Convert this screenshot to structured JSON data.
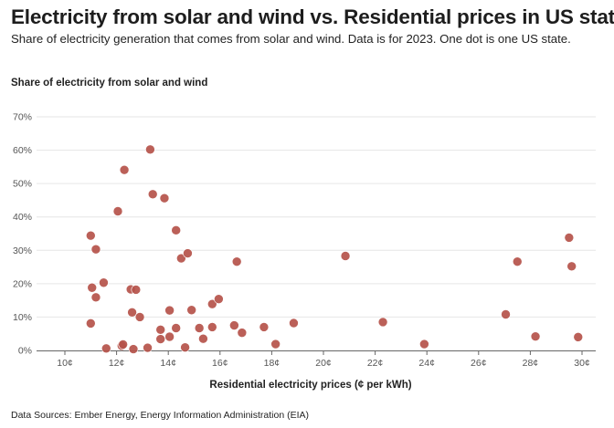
{
  "title": "Electricity from solar and wind vs. Residential prices in US states",
  "subtitle": "Share of electricity generation that comes from solar and wind. Data is for 2023. One dot is one US state.",
  "source": "Data Sources: Ember Energy, Energy Information Administration (EIA)",
  "colors": {
    "dot": "#b5524a",
    "grid": "#e6e6e6",
    "axis": "#666666"
  },
  "chart_data": {
    "type": "scatter",
    "title": "Electricity from solar and wind vs. Residential prices in US states",
    "xlabel": "Residential electricity prices (¢ per kWh)",
    "ylabel": "Share of electricity from solar and wind",
    "xlim": [
      9,
      30
    ],
    "ylim": [
      0,
      70
    ],
    "xticks": [
      10,
      12,
      14,
      16,
      18,
      20,
      22,
      24,
      26,
      28,
      30
    ],
    "xtick_labels": [
      "10¢",
      "12¢",
      "14¢",
      "16¢",
      "18¢",
      "20¢",
      "22¢",
      "24¢",
      "26¢",
      "28¢",
      "30¢"
    ],
    "yticks": [
      0,
      10,
      20,
      30,
      40,
      50,
      60,
      70
    ],
    "ytick_labels": [
      "0%",
      "10%",
      "20%",
      "30%",
      "40%",
      "50%",
      "60%",
      "70%"
    ],
    "grid": "horizontal",
    "points": [
      {
        "x": 11.0,
        "y": 34.4
      },
      {
        "x": 11.0,
        "y": 8.1
      },
      {
        "x": 11.05,
        "y": 18.8
      },
      {
        "x": 11.2,
        "y": 30.3
      },
      {
        "x": 11.2,
        "y": 15.9
      },
      {
        "x": 11.5,
        "y": 20.3
      },
      {
        "x": 11.6,
        "y": 0.6
      },
      {
        "x": 12.05,
        "y": 41.7
      },
      {
        "x": 12.2,
        "y": 1.4
      },
      {
        "x": 12.25,
        "y": 1.8
      },
      {
        "x": 12.3,
        "y": 54.1
      },
      {
        "x": 12.55,
        "y": 18.3
      },
      {
        "x": 12.6,
        "y": 11.4
      },
      {
        "x": 12.65,
        "y": 0.4
      },
      {
        "x": 12.75,
        "y": 18.2
      },
      {
        "x": 12.9,
        "y": 10.0
      },
      {
        "x": 13.2,
        "y": 0.8
      },
      {
        "x": 13.3,
        "y": 60.2
      },
      {
        "x": 13.4,
        "y": 46.8
      },
      {
        "x": 13.7,
        "y": 6.2
      },
      {
        "x": 13.7,
        "y": 3.4
      },
      {
        "x": 13.85,
        "y": 45.6
      },
      {
        "x": 14.05,
        "y": 12.0
      },
      {
        "x": 14.05,
        "y": 4.1
      },
      {
        "x": 14.3,
        "y": 36.0
      },
      {
        "x": 14.3,
        "y": 6.7
      },
      {
        "x": 14.5,
        "y": 27.6
      },
      {
        "x": 14.65,
        "y": 0.9
      },
      {
        "x": 14.75,
        "y": 29.1
      },
      {
        "x": 14.9,
        "y": 12.1
      },
      {
        "x": 15.2,
        "y": 6.7
      },
      {
        "x": 15.35,
        "y": 3.5
      },
      {
        "x": 15.7,
        "y": 13.9
      },
      {
        "x": 15.7,
        "y": 7.0
      },
      {
        "x": 15.95,
        "y": 15.4
      },
      {
        "x": 16.55,
        "y": 7.5
      },
      {
        "x": 16.65,
        "y": 26.6
      },
      {
        "x": 16.85,
        "y": 5.3
      },
      {
        "x": 17.7,
        "y": 7.0
      },
      {
        "x": 18.15,
        "y": 1.9
      },
      {
        "x": 18.85,
        "y": 8.2
      },
      {
        "x": 20.85,
        "y": 28.3
      },
      {
        "x": 22.3,
        "y": 8.5
      },
      {
        "x": 23.9,
        "y": 1.9
      },
      {
        "x": 27.05,
        "y": 10.8
      },
      {
        "x": 27.5,
        "y": 26.6
      },
      {
        "x": 28.2,
        "y": 4.2
      },
      {
        "x": 29.5,
        "y": 33.8
      },
      {
        "x": 29.6,
        "y": 25.2
      },
      {
        "x": 29.85,
        "y": 4.0
      }
    ]
  }
}
